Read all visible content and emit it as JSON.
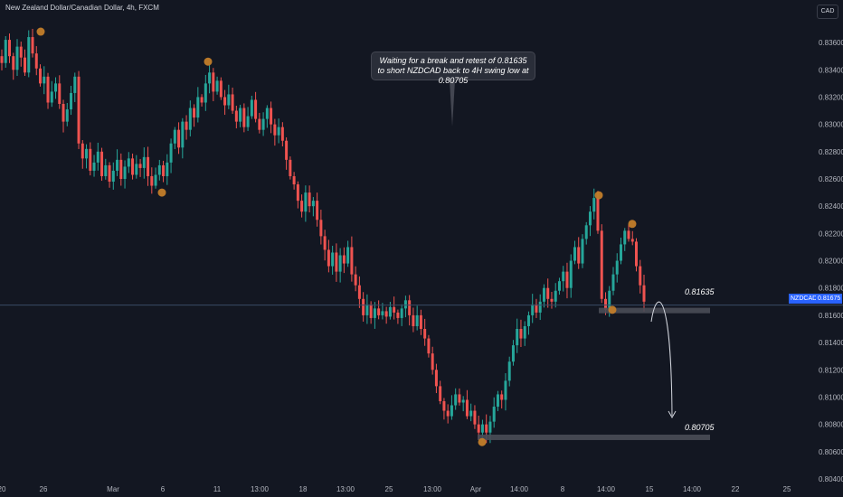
{
  "header": {
    "title": "New Zealand Dollar/Canadian Dollar, 4h, FXCM"
  },
  "currency_button": "CAD",
  "annotation": {
    "text": "Waiting for a break and retest of 0.81635 to short NZDCAD back to 4H swing low at 0.80705"
  },
  "levels": {
    "upper_label": "0.81635",
    "lower_label": "0.80705"
  },
  "price_tag": {
    "symbol": "NZDCAD",
    "price": "0.81675"
  },
  "colors": {
    "up": "#26a69a",
    "down": "#ef5350",
    "background": "#131722",
    "marker": "#c27d2a",
    "zone": "#4a4d57"
  },
  "chart_data": {
    "type": "candlestick",
    "symbol": "NZDCAD",
    "timeframe": "4h",
    "ylim": [
      0.804,
      0.837
    ],
    "y_ticks": [
      "0.83600",
      "0.83400",
      "0.83200",
      "0.83000",
      "0.82800",
      "0.82600",
      "0.82400",
      "0.82200",
      "0.82000",
      "0.81800",
      "0.81600",
      "0.81400",
      "0.81200",
      "0.81000",
      "0.80800",
      "0.80600",
      "0.80400"
    ],
    "x_ticks": [
      "20",
      "26",
      "Mar",
      "6",
      "11",
      "13:00",
      "18",
      "13:00",
      "25",
      "13:00",
      "Apr",
      "14:00",
      "8",
      "14:00",
      "15",
      "14:00",
      "22",
      "25"
    ],
    "swing_markers": [
      0.8368,
      0.8346,
      0.825,
      0.8248,
      0.8227,
      0.8164,
      0.8067
    ],
    "current_price": 0.81675,
    "resistance_level": 0.81635,
    "target_level": 0.80705,
    "close_path": [
      0.8345,
      0.8362,
      0.835,
      0.834,
      0.8357,
      0.8349,
      0.8338,
      0.8364,
      0.8352,
      0.8341,
      0.833,
      0.8335,
      0.8316,
      0.8324,
      0.833,
      0.8315,
      0.8302,
      0.8311,
      0.8323,
      0.8335,
      0.8286,
      0.8275,
      0.8282,
      0.8266,
      0.8272,
      0.828,
      0.8262,
      0.827,
      0.8258,
      0.8266,
      0.8274,
      0.826,
      0.8269,
      0.8275,
      0.8263,
      0.8271,
      0.8268,
      0.8276,
      0.8262,
      0.8255,
      0.8263,
      0.827,
      0.8262,
      0.8272,
      0.8286,
      0.8296,
      0.8283,
      0.8302,
      0.8296,
      0.8312,
      0.8305,
      0.832,
      0.8316,
      0.833,
      0.8338,
      0.8324,
      0.8332,
      0.832,
      0.8314,
      0.8322,
      0.831,
      0.8302,
      0.8312,
      0.8298,
      0.8306,
      0.8318,
      0.8304,
      0.8296,
      0.8304,
      0.8312,
      0.83,
      0.8292,
      0.8298,
      0.8288,
      0.8274,
      0.8262,
      0.8256,
      0.8244,
      0.8236,
      0.825,
      0.824,
      0.8244,
      0.823,
      0.8218,
      0.8208,
      0.8196,
      0.8206,
      0.8192,
      0.8204,
      0.8198,
      0.821,
      0.819,
      0.8182,
      0.8172,
      0.816,
      0.8168,
      0.8158,
      0.8165,
      0.816,
      0.8163,
      0.8159,
      0.8166,
      0.8162,
      0.8158,
      0.8165,
      0.8171,
      0.816,
      0.8152,
      0.816,
      0.815,
      0.8143,
      0.8132,
      0.812,
      0.8108,
      0.8097,
      0.809,
      0.8086,
      0.8094,
      0.8102,
      0.8096,
      0.8098,
      0.8086,
      0.809,
      0.808,
      0.8074,
      0.808,
      0.8074,
      0.8082,
      0.8093,
      0.8102,
      0.8098,
      0.8112,
      0.8126,
      0.8138,
      0.815,
      0.8143,
      0.8152,
      0.816,
      0.8168,
      0.8162,
      0.817,
      0.818,
      0.8172,
      0.817,
      0.8178,
      0.8185,
      0.8192,
      0.818,
      0.82,
      0.821,
      0.8198,
      0.8216,
      0.8226,
      0.8236,
      0.8246,
      0.8222,
      0.8172,
      0.8164,
      0.8178,
      0.819,
      0.82,
      0.8212,
      0.8222,
      0.8216,
      0.8214,
      0.8196,
      0.8182,
      0.817
    ]
  }
}
